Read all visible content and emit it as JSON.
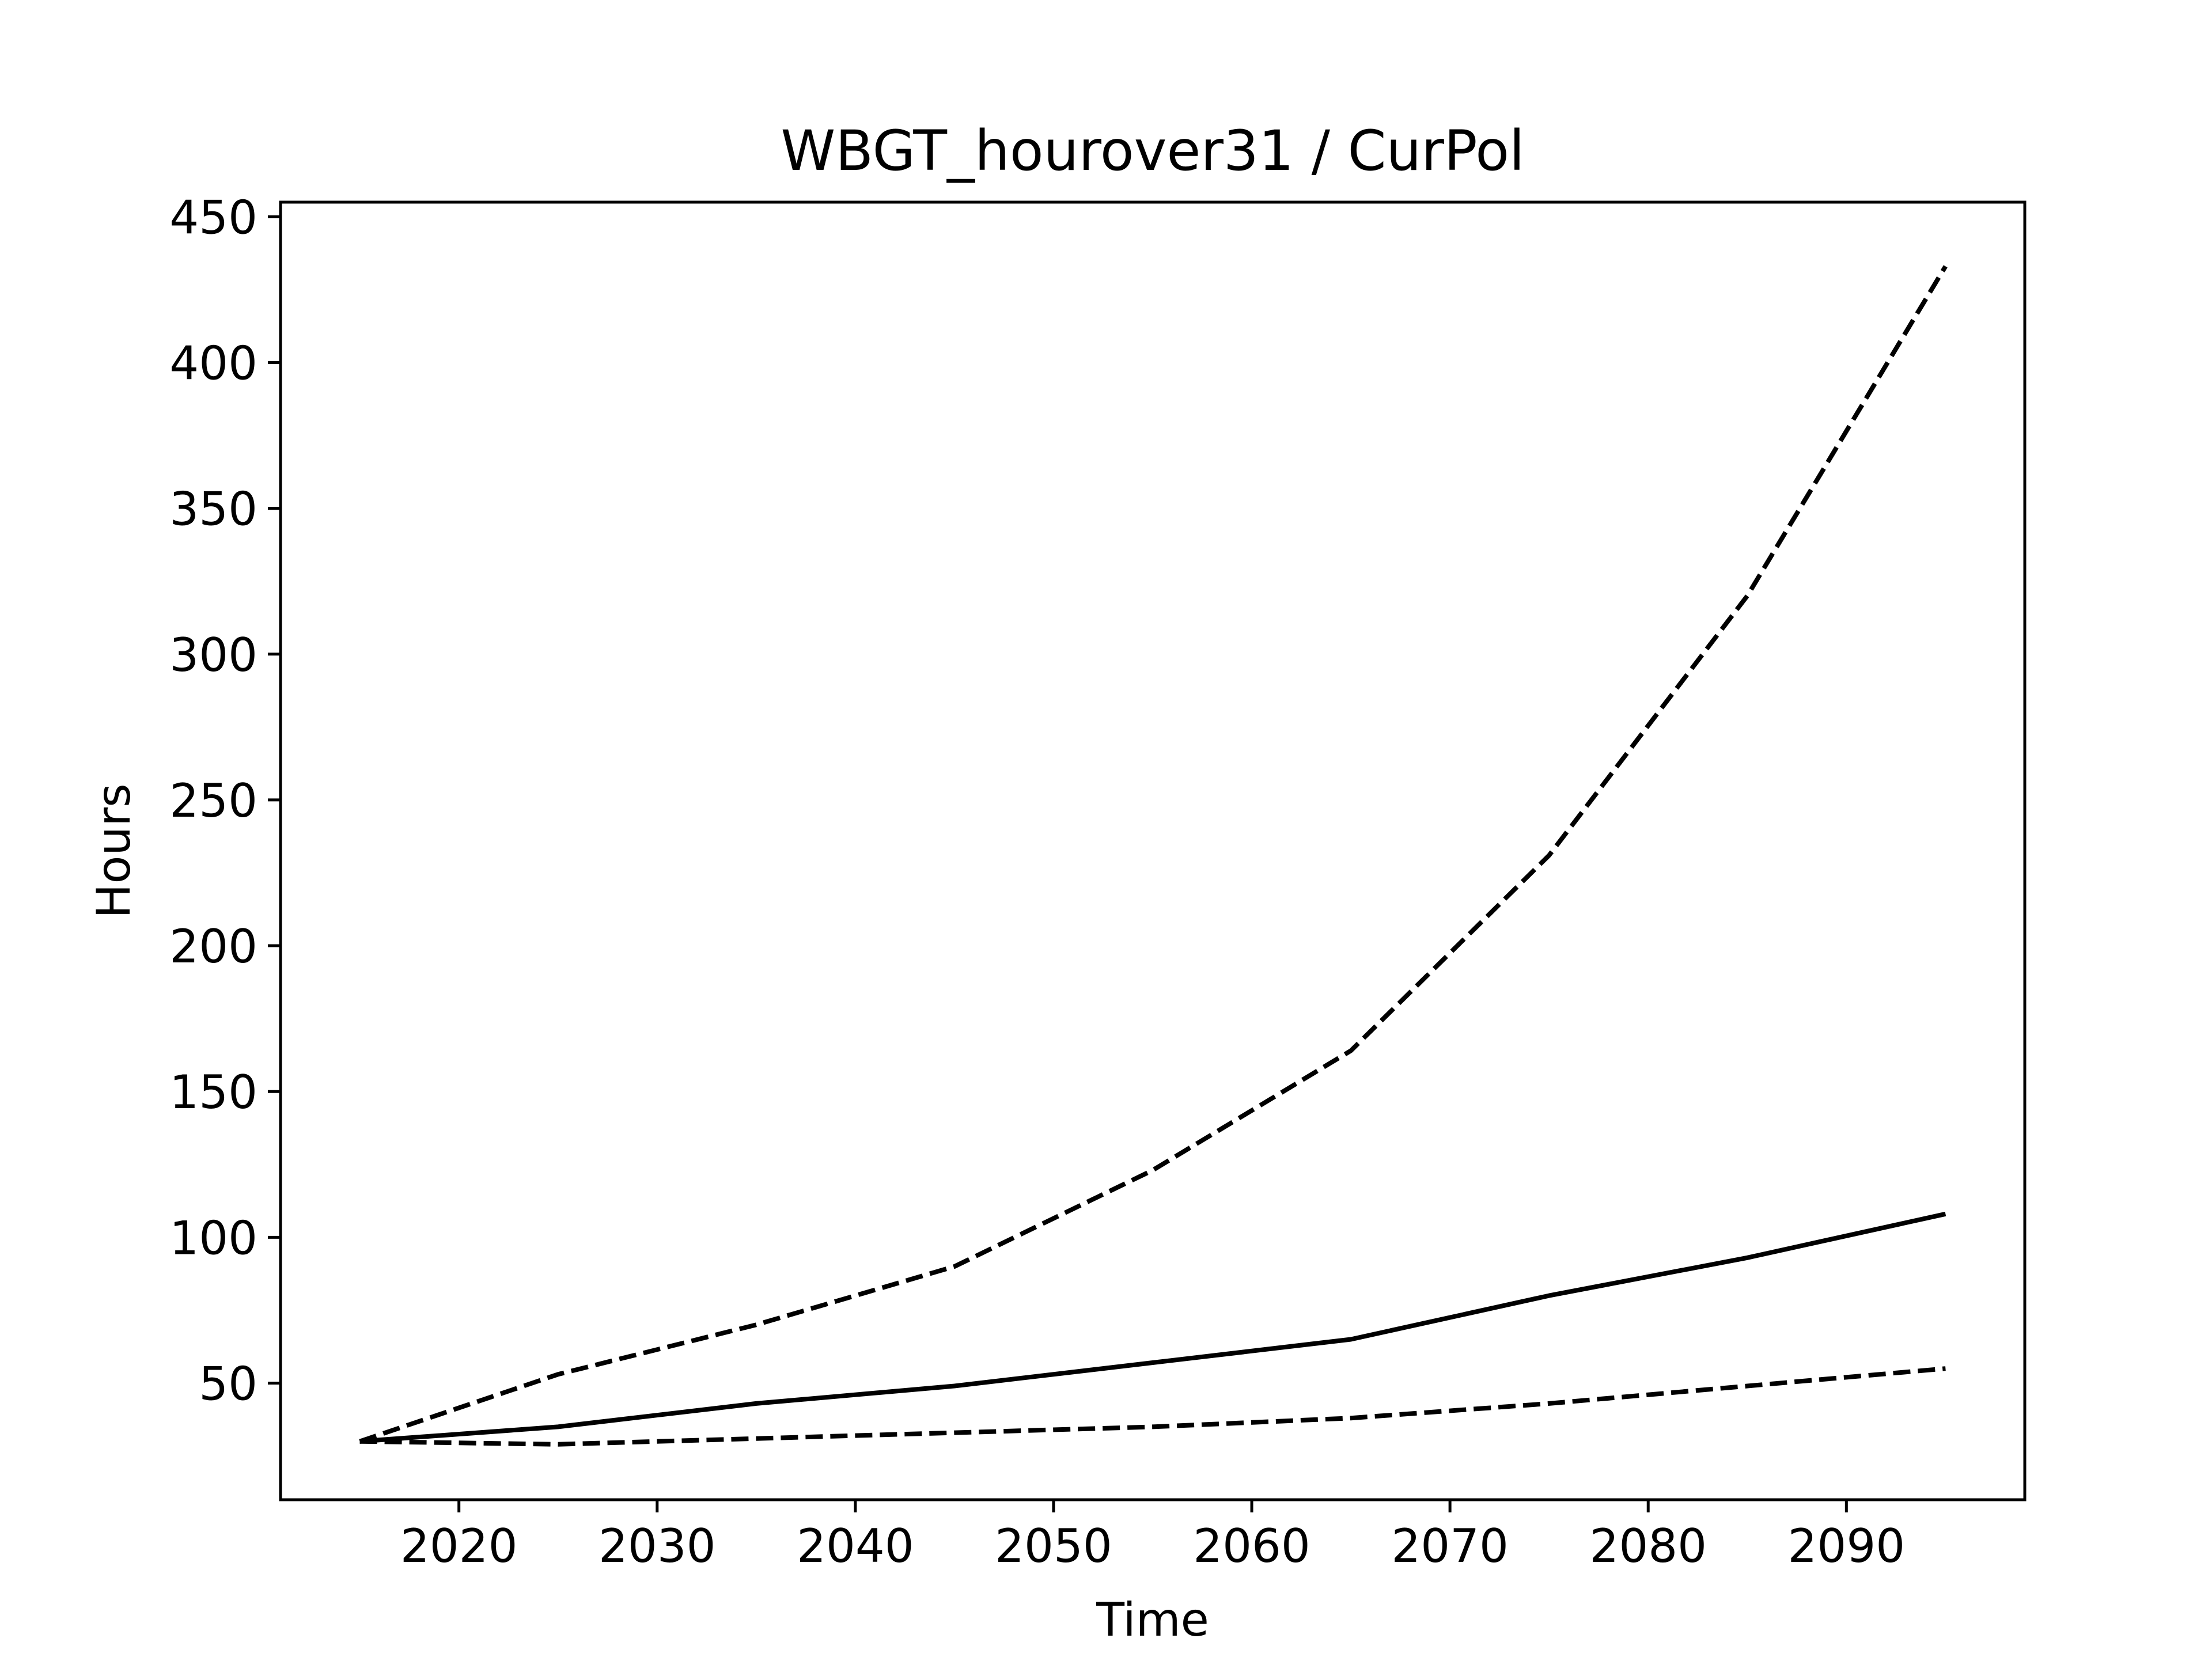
{
  "chart_data": {
    "type": "line",
    "title": "WBGT_hourover31 / CurPol",
    "xlabel": "Time",
    "ylabel": "Hours",
    "xlim": [
      2011,
      2099
    ],
    "ylim": [
      10,
      455
    ],
    "x_ticks": [
      2020,
      2030,
      2040,
      2050,
      2060,
      2070,
      2080,
      2090
    ],
    "y_ticks": [
      50,
      100,
      150,
      200,
      250,
      300,
      350,
      400,
      450
    ],
    "x_tick_labels": [
      "2020",
      "2030",
      "2040",
      "2050",
      "2060",
      "2070",
      "2080",
      "2090"
    ],
    "y_tick_labels": [
      "50",
      "100",
      "150",
      "200",
      "250",
      "300",
      "350",
      "400",
      "450"
    ],
    "grid": false,
    "legend": "none",
    "line_color": "#000000",
    "x": [
      2015,
      2025,
      2035,
      2045,
      2055,
      2065,
      2075,
      2085,
      2095
    ],
    "series": [
      {
        "style": "solid",
        "values": [
          30,
          35,
          43,
          49,
          57,
          65,
          80,
          93,
          108
        ]
      },
      {
        "style": "dashed",
        "values": [
          30,
          53,
          70,
          90,
          123,
          164,
          231,
          320,
          433
        ]
      },
      {
        "style": "dashed",
        "values": [
          30,
          29,
          31,
          33,
          35,
          38,
          43,
          49,
          55
        ]
      }
    ]
  }
}
